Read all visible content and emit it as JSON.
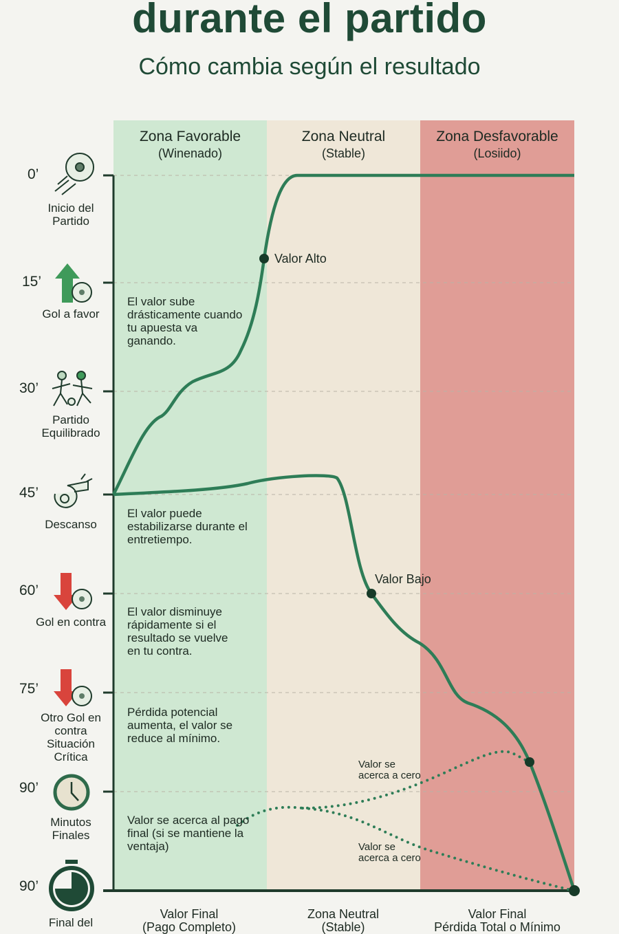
{
  "header": {
    "title": "durante el partido",
    "subtitle": "Cómo cambia según el resultado"
  },
  "zones": [
    {
      "name": "Zona Favorable",
      "sub": "(Winenado)",
      "color": "#cfe8d2"
    },
    {
      "name": "Zona Neutral",
      "sub": "(Stable)",
      "color": "#efe7d8"
    },
    {
      "name": "Zona Desfavorable",
      "sub": "(Losiido)",
      "color": "#e09d96"
    }
  ],
  "timeline": [
    {
      "tick": "0’",
      "event": "Inicio del Partido",
      "icon": "soccer-ball-kick-icon"
    },
    {
      "tick": "15’",
      "event": "Gol a favor",
      "icon": "arrow-up-ball-icon"
    },
    {
      "tick": "30’",
      "event": "Partido Equilibrado",
      "icon": "players-icon"
    },
    {
      "tick": "45’",
      "event": "Descanso",
      "icon": "whistle-icon"
    },
    {
      "tick": "60’",
      "event": "Gol en contra",
      "icon": "arrow-down-ball-icon"
    },
    {
      "tick": "75’",
      "event": "Otro Gol en contra Situación Crítica",
      "icon": "arrow-down-ball-icon"
    },
    {
      "tick": "90’",
      "event": "Minutos Finales",
      "icon": "clock-icon"
    },
    {
      "tick": "90’",
      "event": "Final del",
      "icon": "stopwatch-icon"
    }
  ],
  "notes": [
    "El valor sube drásticamente cuando tu apuesta va ganando.",
    "El valor puede estabilizarse durante el entretiempo.",
    "El valor disminuye rápidamente si el resultado se vuelve en tu contra.",
    "Pérdida potencial aumenta, el valor se reduce al mínimo.",
    "Valor se acerca al pago final (si se mantiene la ventaja)"
  ],
  "labels": {
    "high": "Valor Alto",
    "low": "Valor Bajo",
    "zero1": "Valor se acerca a cero",
    "zero2": "Valor se acerca a cero"
  },
  "footer": [
    {
      "line1": "Valor Final",
      "line2": "(Pago Completo)"
    },
    {
      "line1": "Zona Neutral",
      "line2": "(Stable)"
    },
    {
      "line1": "Valor Final",
      "line2": "Pérdida Total o Mínimo"
    }
  ],
  "colors": {
    "line": "#2e7d57",
    "axis": "#1f3b2c",
    "dot": "#173a28"
  }
}
